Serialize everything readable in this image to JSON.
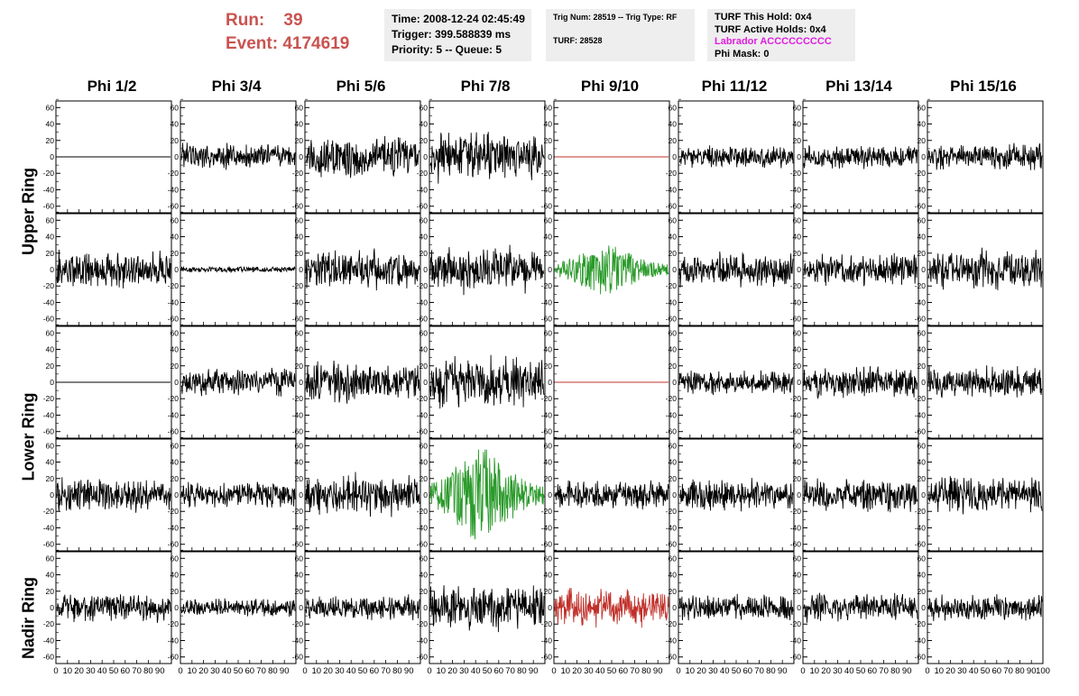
{
  "header": {
    "run_label": "Run:",
    "run_value": "39",
    "event_label": "Event:",
    "event_value": "4174619",
    "time": "Time: 2008-12-24 02:45:49",
    "trigger": "Trigger: 399.588839 ms",
    "priority": "Priority: 5 -- Queue: 5",
    "trig_num": "Trig Num: 28519 -- Trig Type: RF",
    "turf": "TURF: 28528",
    "turf_this_hold": "TURF This Hold: 0x4",
    "turf_active_holds": "TURF Active Holds: 0x4",
    "labrador": "Labrador ACCCCCCCCC",
    "phi_mask": "Phi Mask: 0"
  },
  "columns": [
    "Phi 1/2",
    "Phi 3/4",
    "Phi 5/6",
    "Phi 7/8",
    "Phi 9/10",
    "Phi 11/12",
    "Phi 13/14",
    "Phi 15/16"
  ],
  "rings": [
    "Upper Ring",
    "Lower Ring",
    "Nadir Ring"
  ],
  "axes": {
    "y_ticks": [
      60,
      40,
      20,
      0,
      -20,
      -40,
      -60
    ],
    "y_range": [
      -68,
      68
    ],
    "x_range": [
      0,
      100
    ],
    "x_tick_labels": [
      "0",
      "10",
      "20",
      "30",
      "40",
      "50",
      "60",
      "70",
      "80",
      "90",
      "100"
    ]
  },
  "colors": {
    "header_red": "#c9534f",
    "panel_bg": "#eeeeee",
    "labrador": "#e01ee0",
    "trace_default": "#000000",
    "trace_green": "#2a9a2a",
    "trace_red": "#c0302a"
  },
  "chart_data": {
    "type": "line",
    "x_unit": "sample index (0-100)",
    "y_ticks": [
      60,
      40,
      20,
      0,
      -20,
      -40,
      -60
    ],
    "rows": [
      {
        "row": 1,
        "ring": "Upper Ring",
        "panels": [
          {
            "col": "Phi 1/2",
            "style": "flat",
            "amplitude": 0,
            "color": "#000000"
          },
          {
            "col": "Phi 3/4",
            "style": "noise",
            "amplitude": 14,
            "color": "#000000"
          },
          {
            "col": "Phi 5/6",
            "style": "noise",
            "amplitude": 22,
            "color": "#000000"
          },
          {
            "col": "Phi 7/8",
            "style": "noise",
            "amplitude": 25,
            "color": "#000000"
          },
          {
            "col": "Phi 9/10",
            "style": "flat",
            "amplitude": 0,
            "color": "#c0302a"
          },
          {
            "col": "Phi 11/12",
            "style": "noise",
            "amplitude": 11,
            "color": "#000000"
          },
          {
            "col": "Phi 13/14",
            "style": "noise",
            "amplitude": 12,
            "color": "#000000"
          },
          {
            "col": "Phi 15/16",
            "style": "noise",
            "amplitude": 13,
            "color": "#000000"
          }
        ]
      },
      {
        "row": 2,
        "ring": "Upper Ring",
        "panels": [
          {
            "col": "Phi 1/2",
            "style": "noise",
            "amplitude": 19,
            "color": "#000000"
          },
          {
            "col": "Phi 3/4",
            "style": "noise",
            "amplitude": 3,
            "color": "#000000"
          },
          {
            "col": "Phi 5/6",
            "style": "noise",
            "amplitude": 20,
            "color": "#000000"
          },
          {
            "col": "Phi 7/8",
            "style": "noise",
            "amplitude": 24,
            "color": "#000000"
          },
          {
            "col": "Phi 9/10",
            "style": "pulse",
            "amplitude": 25,
            "color": "#2a9a2a"
          },
          {
            "col": "Phi 11/12",
            "style": "noise",
            "amplitude": 17,
            "color": "#000000"
          },
          {
            "col": "Phi 13/14",
            "style": "noise",
            "amplitude": 16,
            "color": "#000000"
          },
          {
            "col": "Phi 15/16",
            "style": "noise",
            "amplitude": 21,
            "color": "#000000"
          }
        ]
      },
      {
        "row": 3,
        "ring": "Lower Ring",
        "panels": [
          {
            "col": "Phi 1/2",
            "style": "flat",
            "amplitude": 0,
            "color": "#000000"
          },
          {
            "col": "Phi 3/4",
            "style": "noise",
            "amplitude": 14,
            "color": "#000000"
          },
          {
            "col": "Phi 5/6",
            "style": "noise",
            "amplitude": 20,
            "color": "#000000"
          },
          {
            "col": "Phi 7/8",
            "style": "noise",
            "amplitude": 26,
            "color": "#000000"
          },
          {
            "col": "Phi 9/10",
            "style": "flat",
            "amplitude": 0,
            "color": "#c0302a"
          },
          {
            "col": "Phi 11/12",
            "style": "noise",
            "amplitude": 13,
            "color": "#000000"
          },
          {
            "col": "Phi 13/14",
            "style": "noise",
            "amplitude": 16,
            "color": "#000000"
          },
          {
            "col": "Phi 15/16",
            "style": "noise",
            "amplitude": 16,
            "color": "#000000"
          }
        ]
      },
      {
        "row": 4,
        "ring": "Lower Ring",
        "panels": [
          {
            "col": "Phi 1/2",
            "style": "noise",
            "amplitude": 17,
            "color": "#000000"
          },
          {
            "col": "Phi 3/4",
            "style": "noise",
            "amplitude": 13,
            "color": "#000000"
          },
          {
            "col": "Phi 5/6",
            "style": "noise",
            "amplitude": 21,
            "color": "#000000"
          },
          {
            "col": "Phi 7/8",
            "style": "pulse",
            "amplitude": 45,
            "color": "#2a9a2a"
          },
          {
            "col": "Phi 9/10",
            "style": "noise",
            "amplitude": 15,
            "color": "#000000"
          },
          {
            "col": "Phi 11/12",
            "style": "noise",
            "amplitude": 16,
            "color": "#000000"
          },
          {
            "col": "Phi 13/14",
            "style": "noise",
            "amplitude": 17,
            "color": "#000000"
          },
          {
            "col": "Phi 15/16",
            "style": "noise",
            "amplitude": 18,
            "color": "#000000"
          }
        ]
      },
      {
        "row": 5,
        "ring": "Nadir Ring",
        "panels": [
          {
            "col": "Phi 1/2",
            "style": "noise",
            "amplitude": 14,
            "color": "#000000"
          },
          {
            "col": "Phi 3/4",
            "style": "noise",
            "amplitude": 9,
            "color": "#000000"
          },
          {
            "col": "Phi 5/6",
            "style": "noise",
            "amplitude": 12,
            "color": "#000000"
          },
          {
            "col": "Phi 7/8",
            "style": "noise",
            "amplitude": 24,
            "color": "#000000"
          },
          {
            "col": "Phi 9/10",
            "style": "noise",
            "amplitude": 19,
            "color": "#c0302a"
          },
          {
            "col": "Phi 11/12",
            "style": "noise",
            "amplitude": 13,
            "color": "#000000"
          },
          {
            "col": "Phi 13/14",
            "style": "noise",
            "amplitude": 14,
            "color": "#000000"
          },
          {
            "col": "Phi 15/16",
            "style": "noise",
            "amplitude": 14,
            "color": "#000000"
          }
        ]
      }
    ]
  }
}
